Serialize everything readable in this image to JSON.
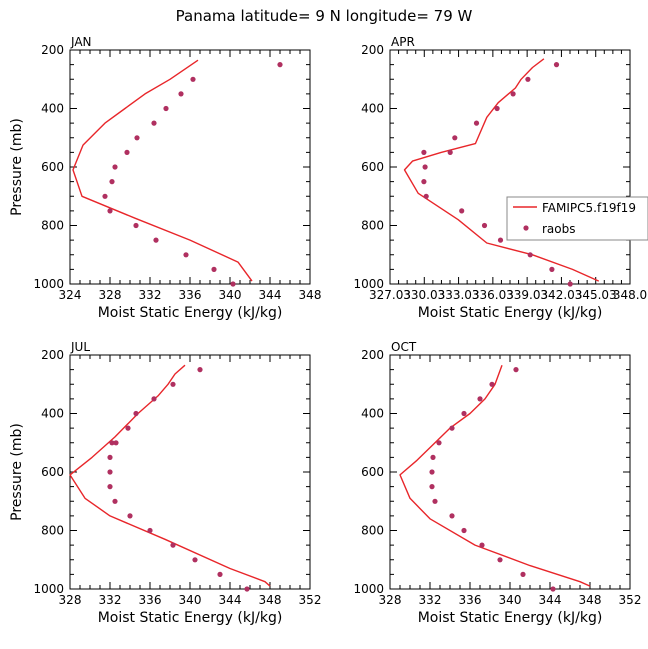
{
  "figure": {
    "title": "Panama   latitude= 9 N longitude= 79 W",
    "colors": {
      "model": "#e8262a",
      "obs": "#b03060",
      "axis": "#000000"
    }
  },
  "legend": {
    "model_label": "FAMIPC5.f19f19",
    "obs_label": "raobs"
  },
  "chart_data": [
    {
      "type": "scatter",
      "title": "JAN",
      "xlabel": "Moist Static Energy (kJ/kg)",
      "ylabel": "Pressure (mb)",
      "xlim": [
        324,
        348
      ],
      "ylim": [
        1000,
        200
      ],
      "xticks": [
        324,
        328,
        332,
        336,
        340,
        344,
        348
      ],
      "xtick_labels": [
        "324",
        "328",
        "332",
        "336",
        "340",
        "344",
        "348"
      ],
      "yticks": [
        200,
        400,
        600,
        800,
        1000
      ],
      "series": [
        {
          "name": "FAMIPC5.f19f19",
          "kind": "line",
          "x": [
            342.2,
            340.8,
            336.0,
            330.5,
            325.2,
            324.3,
            325.3,
            327.5,
            329.5,
            331.5,
            334.0,
            336.8
          ],
          "y": [
            990,
            925,
            850,
            775,
            700,
            610,
            525,
            450,
            400,
            350,
            300,
            235
          ]
        },
        {
          "name": "raobs",
          "kind": "points",
          "x": [
            340.3,
            338.4,
            335.6,
            332.6,
            330.6,
            328.0,
            327.5,
            328.2,
            328.5,
            329.7,
            330.7,
            332.4,
            333.6,
            335.1,
            336.3,
            345.0
          ],
          "y": [
            1000,
            950,
            900,
            850,
            800,
            750,
            700,
            650,
            600,
            550,
            500,
            450,
            400,
            350,
            300,
            250
          ]
        }
      ]
    },
    {
      "type": "scatter",
      "title": "APR",
      "xlabel": "Moist Static Energy (kJ/kg)",
      "ylabel": "",
      "xlim": [
        327.03,
        348.03
      ],
      "ylim": [
        1000,
        200
      ],
      "xticks": [
        327.03,
        330.03,
        333.03,
        336.03,
        339.03,
        342.03,
        345.03,
        348.03
      ],
      "xtick_labels": [
        "327.03",
        "330.03",
        "333.03",
        "336.03",
        "339.03",
        "342.03",
        "345.03",
        "348.0"
      ],
      "yticks": [
        200,
        400,
        600,
        800,
        1000
      ],
      "series": [
        {
          "name": "FAMIPC5.f19f19",
          "kind": "line",
          "x": [
            345.3,
            343.0,
            339.5,
            335.5,
            333.0,
            329.5,
            328.3,
            329.0,
            331.5,
            334.5,
            335.5,
            336.5,
            338.0,
            338.5,
            339.5,
            340.5
          ],
          "y": [
            990,
            950,
            900,
            860,
            780,
            690,
            610,
            580,
            550,
            520,
            430,
            380,
            330,
            300,
            260,
            230
          ]
        },
        {
          "name": "raobs",
          "kind": "points",
          "x": [
            342.8,
            341.2,
            339.3,
            336.7,
            335.3,
            333.3,
            330.2,
            330.0,
            330.1,
            330.0,
            332.3,
            332.7,
            334.6,
            336.4,
            337.8,
            339.1,
            341.6
          ],
          "y": [
            1000,
            950,
            900,
            850,
            800,
            750,
            700,
            650,
            600,
            550,
            550,
            500,
            450,
            400,
            350,
            300,
            250
          ]
        }
      ]
    },
    {
      "type": "scatter",
      "title": "JUL",
      "xlabel": "Moist Static Energy (kJ/kg)",
      "ylabel": "Pressure (mb)",
      "xlim": [
        328,
        352
      ],
      "ylim": [
        1000,
        200
      ],
      "xticks": [
        328,
        332,
        336,
        340,
        344,
        348,
        352
      ],
      "xtick_labels": [
        "328",
        "332",
        "336",
        "340",
        "344",
        "348",
        "352"
      ],
      "yticks": [
        200,
        400,
        600,
        800,
        1000
      ],
      "series": [
        {
          "name": "FAMIPC5.f19f19",
          "kind": "line",
          "x": [
            348.0,
            347.5,
            344.0,
            337.5,
            332.0,
            329.5,
            328.0,
            330.2,
            332.5,
            334.8,
            336.8,
            337.8,
            338.5,
            339.5
          ],
          "y": [
            990,
            975,
            930,
            830,
            750,
            690,
            610,
            550,
            480,
            400,
            340,
            300,
            265,
            235
          ]
        },
        {
          "name": "raobs",
          "kind": "points",
          "x": [
            345.7,
            343.0,
            340.5,
            338.3,
            336.0,
            334.0,
            332.5,
            332.0,
            332.0,
            332.0,
            332.2,
            332.6,
            333.8,
            334.6,
            336.4,
            338.3,
            341.0
          ],
          "y": [
            1000,
            950,
            900,
            850,
            800,
            750,
            700,
            650,
            600,
            550,
            500,
            500,
            450,
            400,
            350,
            300,
            250
          ]
        }
      ]
    },
    {
      "type": "scatter",
      "title": "OCT",
      "xlabel": "Moist Static Energy (kJ/kg)",
      "ylabel": "",
      "xlim": [
        328,
        352
      ],
      "ylim": [
        1000,
        200
      ],
      "xticks": [
        328,
        332,
        336,
        340,
        344,
        348,
        352
      ],
      "xtick_labels": [
        "328",
        "332",
        "336",
        "340",
        "344",
        "348",
        "352"
      ],
      "yticks": [
        200,
        400,
        600,
        800,
        1000
      ],
      "series": [
        {
          "name": "FAMIPC5.f19f19",
          "kind": "line",
          "x": [
            348.0,
            347.0,
            342.0,
            336.5,
            332.0,
            330.0,
            329.0,
            330.7,
            332.5,
            334.0,
            336.0,
            337.5,
            338.5,
            339.2
          ],
          "y": [
            990,
            975,
            920,
            850,
            760,
            690,
            610,
            560,
            500,
            450,
            400,
            350,
            300,
            235
          ]
        },
        {
          "name": "raobs",
          "kind": "points",
          "x": [
            344.3,
            341.3,
            339.0,
            337.2,
            335.4,
            334.2,
            332.5,
            332.2,
            332.2,
            332.3,
            332.9,
            334.2,
            335.4,
            337.0,
            338.2,
            340.6
          ],
          "y": [
            1000,
            950,
            900,
            850,
            800,
            750,
            700,
            650,
            600,
            550,
            500,
            450,
            400,
            350,
            300,
            250
          ]
        }
      ]
    }
  ]
}
